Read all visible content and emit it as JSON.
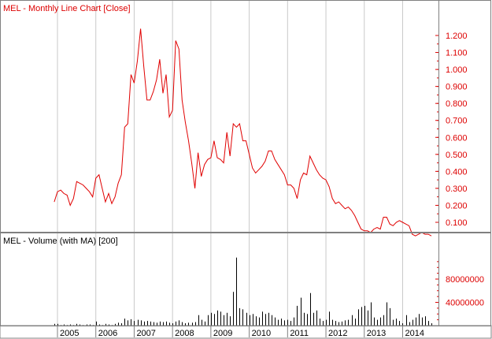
{
  "chart_data": [
    {
      "type": "line",
      "title": "MEL - Monthly Line Chart [Close]",
      "series": [
        {
          "points": [
            [
              "2004-12",
              0.22
            ],
            [
              "2005-01",
              0.28
            ],
            [
              "2005-02",
              0.29
            ],
            [
              "2005-03",
              0.27
            ],
            [
              "2005-04",
              0.26
            ],
            [
              "2005-05",
              0.2
            ],
            [
              "2005-06",
              0.24
            ],
            [
              "2005-07",
              0.34
            ],
            [
              "2005-08",
              0.33
            ],
            [
              "2005-09",
              0.32
            ],
            [
              "2005-10",
              0.3
            ],
            [
              "2005-11",
              0.28
            ],
            [
              "2005-12",
              0.25
            ],
            [
              "2006-01",
              0.36
            ],
            [
              "2006-02",
              0.38
            ],
            [
              "2006-03",
              0.3
            ],
            [
              "2006-04",
              0.22
            ],
            [
              "2006-05",
              0.27
            ],
            [
              "2006-06",
              0.21
            ],
            [
              "2006-07",
              0.25
            ],
            [
              "2006-08",
              0.33
            ],
            [
              "2006-09",
              0.38
            ],
            [
              "2006-10",
              0.66
            ],
            [
              "2006-11",
              0.68
            ],
            [
              "2006-12",
              0.97
            ],
            [
              "2007-01",
              0.92
            ],
            [
              "2007-02",
              1.05
            ],
            [
              "2007-03",
              1.24
            ],
            [
              "2007-04",
              1.02
            ],
            [
              "2007-05",
              0.82
            ],
            [
              "2007-06",
              0.82
            ],
            [
              "2007-07",
              0.87
            ],
            [
              "2007-08",
              0.94
            ],
            [
              "2007-09",
              1.06
            ],
            [
              "2007-10",
              0.86
            ],
            [
              "2007-11",
              0.97
            ],
            [
              "2007-12",
              0.72
            ],
            [
              "2008-01",
              0.76
            ],
            [
              "2008-02",
              1.17
            ],
            [
              "2008-03",
              1.12
            ],
            [
              "2008-04",
              0.82
            ],
            [
              "2008-05",
              0.69
            ],
            [
              "2008-06",
              0.58
            ],
            [
              "2008-07",
              0.45
            ],
            [
              "2008-08",
              0.3
            ],
            [
              "2008-09",
              0.51
            ],
            [
              "2008-10",
              0.37
            ],
            [
              "2008-11",
              0.44
            ],
            [
              "2008-12",
              0.47
            ],
            [
              "2009-01",
              0.48
            ],
            [
              "2009-02",
              0.58
            ],
            [
              "2009-03",
              0.48
            ],
            [
              "2009-04",
              0.47
            ],
            [
              "2009-05",
              0.45
            ],
            [
              "2009-06",
              0.63
            ],
            [
              "2009-07",
              0.49
            ],
            [
              "2009-08",
              0.68
            ],
            [
              "2009-09",
              0.66
            ],
            [
              "2009-10",
              0.68
            ],
            [
              "2009-11",
              0.58
            ],
            [
              "2009-12",
              0.58
            ],
            [
              "2010-01",
              0.5
            ],
            [
              "2010-02",
              0.42
            ],
            [
              "2010-03",
              0.39
            ],
            [
              "2010-04",
              0.41
            ],
            [
              "2010-05",
              0.43
            ],
            [
              "2010-06",
              0.46
            ],
            [
              "2010-07",
              0.52
            ],
            [
              "2010-08",
              0.52
            ],
            [
              "2010-09",
              0.47
            ],
            [
              "2010-10",
              0.44
            ],
            [
              "2010-11",
              0.41
            ],
            [
              "2010-12",
              0.38
            ],
            [
              "2011-01",
              0.32
            ],
            [
              "2011-02",
              0.32
            ],
            [
              "2011-03",
              0.3
            ],
            [
              "2011-04",
              0.24
            ],
            [
              "2011-05",
              0.35
            ],
            [
              "2011-06",
              0.39
            ],
            [
              "2011-07",
              0.38
            ],
            [
              "2011-08",
              0.49
            ],
            [
              "2011-09",
              0.45
            ],
            [
              "2011-10",
              0.41
            ],
            [
              "2011-11",
              0.38
            ],
            [
              "2011-12",
              0.36
            ],
            [
              "2012-01",
              0.35
            ],
            [
              "2012-02",
              0.31
            ],
            [
              "2012-03",
              0.24
            ],
            [
              "2012-04",
              0.21
            ],
            [
              "2012-05",
              0.22
            ],
            [
              "2012-06",
              0.2
            ],
            [
              "2012-07",
              0.18
            ],
            [
              "2012-08",
              0.19
            ],
            [
              "2012-09",
              0.17
            ],
            [
              "2012-10",
              0.14
            ],
            [
              "2012-11",
              0.1
            ],
            [
              "2012-12",
              0.06
            ],
            [
              "2013-01",
              0.05
            ],
            [
              "2013-02",
              0.05
            ],
            [
              "2013-03",
              0.04
            ],
            [
              "2013-04",
              0.06
            ],
            [
              "2013-05",
              0.07
            ],
            [
              "2013-06",
              0.06
            ],
            [
              "2013-07",
              0.13
            ],
            [
              "2013-08",
              0.13
            ],
            [
              "2013-09",
              0.09
            ],
            [
              "2013-10",
              0.08
            ],
            [
              "2013-11",
              0.1
            ],
            [
              "2013-12",
              0.11
            ],
            [
              "2014-01",
              0.1
            ],
            [
              "2014-02",
              0.09
            ],
            [
              "2014-03",
              0.08
            ],
            [
              "2014-04",
              0.03
            ],
            [
              "2014-05",
              0.02
            ],
            [
              "2014-06",
              0.03
            ],
            [
              "2014-07",
              0.04
            ],
            [
              "2014-08",
              0.03
            ],
            [
              "2014-09",
              0.03
            ],
            [
              "2014-10",
              0.02
            ]
          ]
        }
      ],
      "ylim": [
        0,
        1.3
      ],
      "yticks": [
        "1.200",
        "1.100",
        "1.000",
        "0.900",
        "0.800",
        "0.700",
        "0.600",
        "0.500",
        "0.400",
        "0.300",
        "0.200",
        "0.100"
      ],
      "ytick_values": [
        1.2,
        1.1,
        1.0,
        0.9,
        0.8,
        0.7,
        0.6,
        0.5,
        0.4,
        0.3,
        0.2,
        0.1
      ],
      "y_axis_side": "right",
      "grid": "vertical gridlines at year boundaries",
      "line_color": "#e00000"
    },
    {
      "type": "bar",
      "title": "MEL - Volume (with MA) [200]",
      "series": [
        {
          "points": [
            [
              "2004-12",
              3000000
            ],
            [
              "2005-01",
              3000000
            ],
            [
              "2005-02",
              1000000
            ],
            [
              "2005-03",
              2000000
            ],
            [
              "2005-04",
              1000000
            ],
            [
              "2005-05",
              2000000
            ],
            [
              "2005-06",
              1000000
            ],
            [
              "2005-07",
              3000000
            ],
            [
              "2005-08",
              2000000
            ],
            [
              "2005-09",
              1000000
            ],
            [
              "2005-10",
              2000000
            ],
            [
              "2005-11",
              2000000
            ],
            [
              "2005-12",
              1000000
            ],
            [
              "2006-01",
              7000000
            ],
            [
              "2006-02",
              2000000
            ],
            [
              "2006-03",
              1000000
            ],
            [
              "2006-04",
              3000000
            ],
            [
              "2006-05",
              2000000
            ],
            [
              "2006-06",
              1000000
            ],
            [
              "2006-07",
              3000000
            ],
            [
              "2006-08",
              5000000
            ],
            [
              "2006-09",
              4000000
            ],
            [
              "2006-10",
              12000000
            ],
            [
              "2006-11",
              9000000
            ],
            [
              "2006-12",
              11000000
            ],
            [
              "2007-01",
              8000000
            ],
            [
              "2007-02",
              10000000
            ],
            [
              "2007-03",
              9000000
            ],
            [
              "2007-04",
              7000000
            ],
            [
              "2007-05",
              8000000
            ],
            [
              "2007-06",
              7000000
            ],
            [
              "2007-07",
              6000000
            ],
            [
              "2007-08",
              5000000
            ],
            [
              "2007-09",
              7000000
            ],
            [
              "2007-10",
              6000000
            ],
            [
              "2007-11",
              7000000
            ],
            [
              "2007-12",
              5000000
            ],
            [
              "2008-01",
              4000000
            ],
            [
              "2008-02",
              7000000
            ],
            [
              "2008-03",
              9000000
            ],
            [
              "2008-04",
              6000000
            ],
            [
              "2008-05",
              4000000
            ],
            [
              "2008-06",
              5000000
            ],
            [
              "2008-07",
              5000000
            ],
            [
              "2008-08",
              6000000
            ],
            [
              "2008-09",
              18000000
            ],
            [
              "2008-10",
              10000000
            ],
            [
              "2008-11",
              7000000
            ],
            [
              "2008-12",
              18000000
            ],
            [
              "2009-01",
              22000000
            ],
            [
              "2009-02",
              20000000
            ],
            [
              "2009-03",
              26000000
            ],
            [
              "2009-04",
              24000000
            ],
            [
              "2009-05",
              18000000
            ],
            [
              "2009-06",
              22000000
            ],
            [
              "2009-07",
              16000000
            ],
            [
              "2009-08",
              58000000
            ],
            [
              "2009-09",
              117000000
            ],
            [
              "2009-10",
              30000000
            ],
            [
              "2009-11",
              28000000
            ],
            [
              "2009-12",
              22000000
            ],
            [
              "2010-01",
              18000000
            ],
            [
              "2010-02",
              20000000
            ],
            [
              "2010-03",
              16000000
            ],
            [
              "2010-04",
              14000000
            ],
            [
              "2010-05",
              24000000
            ],
            [
              "2010-06",
              20000000
            ],
            [
              "2010-07",
              22000000
            ],
            [
              "2010-08",
              18000000
            ],
            [
              "2010-09",
              14000000
            ],
            [
              "2010-10",
              10000000
            ],
            [
              "2010-11",
              12000000
            ],
            [
              "2010-12",
              9000000
            ],
            [
              "2011-01",
              10000000
            ],
            [
              "2011-02",
              8000000
            ],
            [
              "2011-03",
              14000000
            ],
            [
              "2011-04",
              34000000
            ],
            [
              "2011-05",
              48000000
            ],
            [
              "2011-06",
              22000000
            ],
            [
              "2011-07",
              20000000
            ],
            [
              "2011-08",
              56000000
            ],
            [
              "2011-09",
              22000000
            ],
            [
              "2011-10",
              26000000
            ],
            [
              "2011-11",
              12000000
            ],
            [
              "2011-12",
              8000000
            ],
            [
              "2012-01",
              10000000
            ],
            [
              "2012-02",
              24000000
            ],
            [
              "2012-03",
              10000000
            ],
            [
              "2012-04",
              8000000
            ],
            [
              "2012-05",
              6000000
            ],
            [
              "2012-06",
              7000000
            ],
            [
              "2012-07",
              9000000
            ],
            [
              "2012-08",
              10000000
            ],
            [
              "2012-09",
              18000000
            ],
            [
              "2012-10",
              12000000
            ],
            [
              "2012-11",
              28000000
            ],
            [
              "2012-12",
              32000000
            ],
            [
              "2013-01",
              34000000
            ],
            [
              "2013-02",
              26000000
            ],
            [
              "2013-03",
              40000000
            ],
            [
              "2013-04",
              14000000
            ],
            [
              "2013-05",
              10000000
            ],
            [
              "2013-06",
              14000000
            ],
            [
              "2013-07",
              18000000
            ],
            [
              "2013-08",
              40000000
            ],
            [
              "2013-09",
              30000000
            ],
            [
              "2013-10",
              10000000
            ],
            [
              "2013-11",
              12000000
            ],
            [
              "2013-12",
              8000000
            ],
            [
              "2014-01",
              4000000
            ],
            [
              "2014-02",
              18000000
            ],
            [
              "2014-03",
              6000000
            ],
            [
              "2014-04",
              10000000
            ],
            [
              "2014-05",
              14000000
            ],
            [
              "2014-06",
              20000000
            ],
            [
              "2014-07",
              14000000
            ],
            [
              "2014-08",
              16000000
            ],
            [
              "2014-09",
              8000000
            ],
            [
              "2014-10",
              4000000
            ]
          ]
        }
      ],
      "ylim": [
        0,
        135000000
      ],
      "yticks": [
        "80000000",
        "40000000"
      ],
      "ytick_values": [
        80000000,
        40000000
      ],
      "y_axis_side": "right",
      "categories_label": [
        "2005",
        "2006",
        "2007",
        "2008",
        "2009",
        "2010",
        "2011",
        "2012",
        "2013",
        "2014"
      ],
      "bar_color": "#000000"
    }
  ]
}
